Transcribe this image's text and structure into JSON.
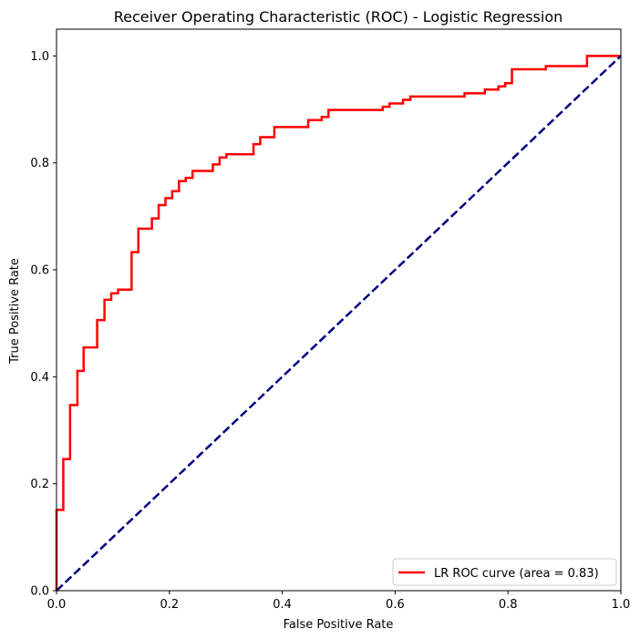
{
  "chart_data": {
    "type": "line",
    "title": "Receiver Operating Characteristic (ROC) - Logistic Regression",
    "xlabel": "False Positive Rate",
    "ylabel": "True Positive Rate",
    "xlim": [
      0.0,
      1.0
    ],
    "ylim": [
      0.0,
      1.05
    ],
    "x_ticks": [
      "0.0",
      "0.2",
      "0.4",
      "0.6",
      "0.8",
      "1.0"
    ],
    "y_ticks": [
      "0.0",
      "0.2",
      "0.4",
      "0.6",
      "0.8",
      "1.0"
    ],
    "grid": false,
    "legend_position": "lower-right",
    "series": [
      {
        "name": "LR ROC curve (area = 0.83)",
        "color": "#ff0000",
        "style": "solid",
        "x": [
          0.0,
          0.0,
          0.012,
          0.012,
          0.024,
          0.024,
          0.037,
          0.037,
          0.048,
          0.048,
          0.072,
          0.072,
          0.085,
          0.085,
          0.097,
          0.097,
          0.109,
          0.109,
          0.133,
          0.133,
          0.145,
          0.145,
          0.169,
          0.169,
          0.181,
          0.181,
          0.193,
          0.193,
          0.205,
          0.205,
          0.217,
          0.217,
          0.229,
          0.229,
          0.241,
          0.241,
          0.277,
          0.277,
          0.289,
          0.289,
          0.301,
          0.301,
          0.349,
          0.349,
          0.361,
          0.361,
          0.386,
          0.386,
          0.446,
          0.446,
          0.47,
          0.47,
          0.482,
          0.482,
          0.578,
          0.578,
          0.59,
          0.59,
          0.614,
          0.614,
          0.627,
          0.627,
          0.723,
          0.723,
          0.759,
          0.759,
          0.783,
          0.783,
          0.795,
          0.795,
          0.807,
          0.807,
          0.867,
          0.867,
          0.94,
          0.94,
          1.0
        ],
        "y": [
          0.0,
          0.151,
          0.151,
          0.246,
          0.246,
          0.347,
          0.347,
          0.411,
          0.411,
          0.455,
          0.455,
          0.506,
          0.506,
          0.544,
          0.544,
          0.556,
          0.556,
          0.563,
          0.563,
          0.633,
          0.633,
          0.677,
          0.677,
          0.696,
          0.696,
          0.721,
          0.721,
          0.734,
          0.734,
          0.747,
          0.747,
          0.766,
          0.766,
          0.772,
          0.772,
          0.785,
          0.785,
          0.797,
          0.797,
          0.81,
          0.81,
          0.816,
          0.816,
          0.835,
          0.835,
          0.848,
          0.848,
          0.867,
          0.867,
          0.88,
          0.88,
          0.886,
          0.886,
          0.899,
          0.899,
          0.905,
          0.905,
          0.911,
          0.911,
          0.918,
          0.918,
          0.924,
          0.924,
          0.93,
          0.93,
          0.937,
          0.937,
          0.943,
          0.943,
          0.949,
          0.949,
          0.975,
          0.975,
          0.981,
          0.981,
          1.0,
          1.0
        ]
      },
      {
        "name": "",
        "color": "#000080",
        "style": "dashed",
        "x": [
          0.0,
          1.0
        ],
        "y": [
          0.0,
          1.0
        ]
      }
    ]
  }
}
